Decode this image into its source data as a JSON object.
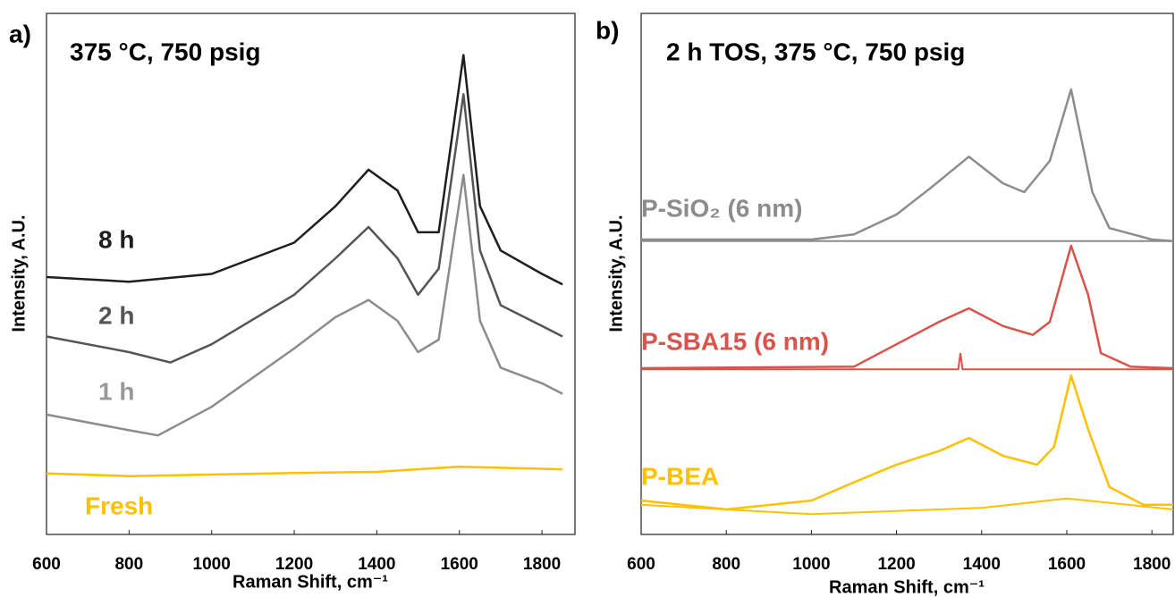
{
  "chart_data": [
    {
      "type": "line",
      "panel_label": "a)",
      "title": "375 °C, 750 psig",
      "x_label": "Raman Shift, cm⁻¹",
      "y_label": "Intensity, A.U.",
      "xlim": [
        600,
        1880
      ],
      "ylim": [
        0,
        100
      ],
      "xticks": [
        600,
        800,
        1000,
        1200,
        1400,
        1600,
        1800
      ],
      "series": [
        {
          "name": "8 h",
          "color": "#1e1e1e",
          "x": [
            600,
            800,
            1000,
            1200,
            1300,
            1380,
            1450,
            1500,
            1550,
            1610,
            1650,
            1700,
            1800,
            1850
          ],
          "values": [
            49.4,
            48.5,
            50,
            56,
            63,
            70,
            66,
            58,
            58,
            92,
            63,
            54.5,
            50,
            48
          ]
        },
        {
          "name": "2 h",
          "color": "#555555",
          "x": [
            600,
            800,
            900,
            1000,
            1200,
            1300,
            1380,
            1450,
            1500,
            1550,
            1610,
            1650,
            1700,
            1800,
            1850
          ],
          "values": [
            38,
            35,
            33,
            36.5,
            46,
            53,
            59,
            53,
            46,
            51,
            84.5,
            54.5,
            44,
            40,
            38
          ]
        },
        {
          "name": "1 h",
          "color": "#8c8c8c",
          "x": [
            600,
            800,
            870,
            1000,
            1200,
            1300,
            1380,
            1450,
            1500,
            1550,
            1610,
            1650,
            1700,
            1800,
            1850
          ],
          "values": [
            23,
            20,
            19,
            24.5,
            35.7,
            41.7,
            45,
            41,
            35,
            37.4,
            69,
            41,
            32,
            29,
            27
          ]
        },
        {
          "name": "Fresh",
          "color": "#ffc000",
          "x": [
            600,
            800,
            1000,
            1200,
            1400,
            1600,
            1850
          ],
          "values": [
            11.7,
            11.2,
            11.5,
            11.8,
            12,
            13,
            12.5
          ]
        }
      ]
    },
    {
      "type": "line",
      "panel_label": "b)",
      "title": "2 h TOS, 375 °C, 750 psig",
      "x_label": "Raman Shift, cm⁻¹",
      "y_label": "Intensity, A.U.",
      "xlim": [
        600,
        1850
      ],
      "ylim": [
        0,
        100
      ],
      "xticks": [
        600,
        800,
        1000,
        1200,
        1400,
        1600,
        1800
      ],
      "series": [
        {
          "name": "P-SiO₂ (6 nm)",
          "color": "#8c8c8c",
          "x": [
            600,
            1000,
            1100,
            1200,
            1280,
            1370,
            1450,
            1500,
            1560,
            1610,
            1660,
            1700,
            1800,
            1850
          ],
          "values": [
            56.6,
            56.6,
            57.6,
            61.4,
            66.5,
            72.5,
            67.4,
            65.7,
            71.7,
            85.4,
            65.7,
            58.8,
            56.6,
            56.3
          ],
          "baseline_x": [
            600,
            1850
          ],
          "baseline": [
            56.3,
            56.3
          ]
        },
        {
          "name": "P-SBA15 (6 nm)",
          "color": "#d9534a",
          "x": [
            600,
            1100,
            1200,
            1300,
            1370,
            1450,
            1520,
            1560,
            1610,
            1650,
            1680,
            1750,
            1850
          ],
          "values": [
            31.9,
            32.2,
            36.5,
            40.8,
            43.4,
            40,
            38.3,
            40.8,
            55.4,
            46,
            34.8,
            32.2,
            31.9
          ],
          "baseline_x": [
            600,
            1345,
            1350,
            1355,
            1850
          ],
          "baseline": [
            31.7,
            31.7,
            34.8,
            31.7,
            31.7
          ]
        },
        {
          "name": "P-BEA",
          "color": "#ffc000",
          "x": [
            600,
            800,
            1000,
            1100,
            1200,
            1300,
            1370,
            1450,
            1530,
            1570,
            1610,
            1650,
            1700,
            1780,
            1850
          ],
          "values": [
            6.5,
            4.8,
            6.5,
            10,
            13.4,
            16,
            18.5,
            15.1,
            13.4,
            16.8,
            30.5,
            20.2,
            9.1,
            5.7,
            5.7
          ],
          "baseline_x": [
            600,
            1000,
            1400,
            1600,
            1850
          ],
          "baseline": [
            5.7,
            3.9,
            5.1,
            6.9,
            4.8
          ]
        }
      ]
    }
  ]
}
